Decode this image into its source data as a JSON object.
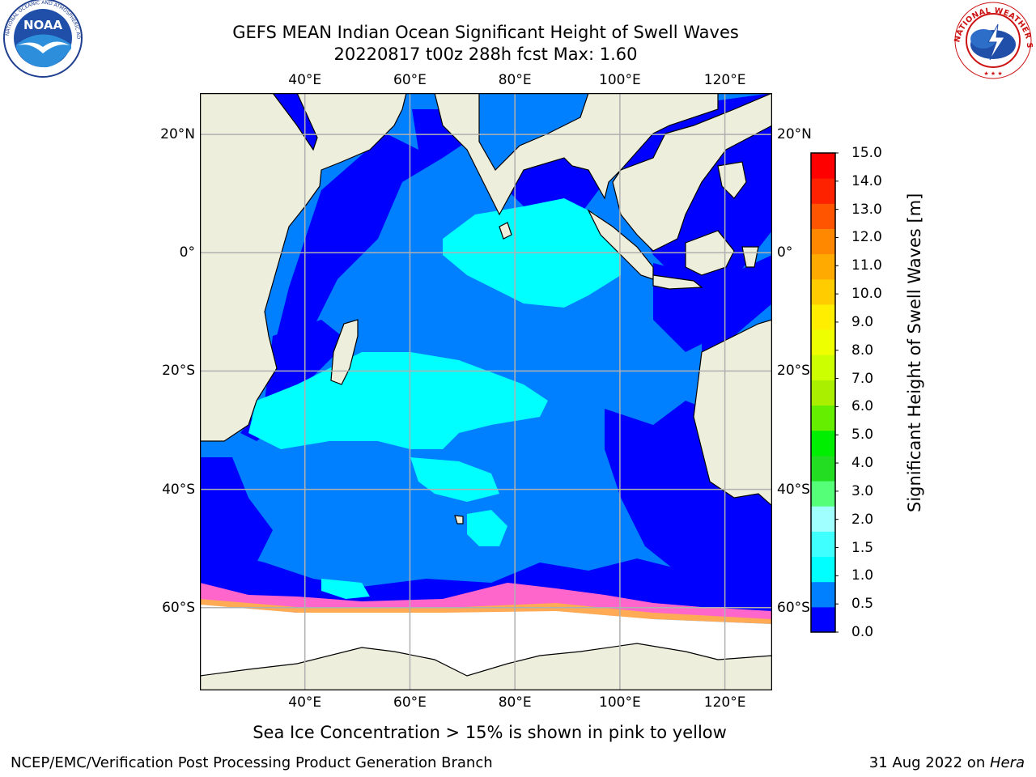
{
  "title": {
    "line1": "GEFS MEAN Indian Ocean Significant Height of Swell Waves",
    "line2": "20220817 t00z 288h fcst   Max: 1.60"
  },
  "map": {
    "region": "Indian Ocean",
    "lon_ticks_top": [
      "40°E",
      "60°E",
      "80°E",
      "100°E",
      "120°E"
    ],
    "lon_ticks_bottom": [
      "40°E",
      "60°E",
      "80°E",
      "100°E",
      "120°E"
    ],
    "lat_ticks_left": [
      "20°N",
      "0°",
      "20°S",
      "40°S",
      "60°S"
    ],
    "lat_ticks_right": [
      "20°N",
      "0°",
      "20°S",
      "40°S",
      "60°S"
    ],
    "lon_values": [
      40,
      60,
      80,
      100,
      120
    ],
    "lat_values": [
      20,
      0,
      -20,
      -40,
      -60
    ],
    "extent": {
      "lon_min": 20,
      "lon_max": 129,
      "lat_min": -74,
      "lat_max": 27
    },
    "grid": true,
    "colors": {
      "land": "#eeeedd",
      "ice_free": "#ffffff",
      "swell_0_0_5": "#0000ff",
      "swell_0_5_1_0": "#0080ff",
      "swell_1_0_1_5": "#00ffff",
      "sea_ice": "#ff66cc",
      "gridline": "#b0b0b0"
    }
  },
  "colorbar": {
    "label": "Significant Height of Swell Waves [m]",
    "ticks": [
      "0.0",
      "0.5",
      "1.0",
      "1.5",
      "2.0",
      "3.0",
      "4.0",
      "5.0",
      "6.0",
      "7.0",
      "8.0",
      "9.0",
      "10.0",
      "11.0",
      "12.0",
      "13.0",
      "14.0",
      "15.0"
    ],
    "colors": [
      "#0000ff",
      "#0080ff",
      "#00ffff",
      "#40ffff",
      "#a0ffff",
      "#55ff77",
      "#22dd22",
      "#00ee00",
      "#66ee00",
      "#aaee00",
      "#ccff00",
      "#eeff00",
      "#ffee00",
      "#ffcc00",
      "#ffaa00",
      "#ff8800",
      "#ff5500",
      "#ff2200",
      "#ff0000"
    ]
  },
  "caption": "Sea Ice Concentration > 15% is shown in pink to yellow",
  "footer": {
    "left": "NCEP/EMC/Verification Post Processing Product Generation Branch",
    "right_date": "31 Aug 2022 on ",
    "right_system": "Hera"
  },
  "logos": {
    "left": "NOAA",
    "left_ring": "NATIONAL OCEANIC AND ATMOSPHERIC ADMINISTRATION",
    "right_ring": "NATIONAL WEATHER SERVICE"
  }
}
